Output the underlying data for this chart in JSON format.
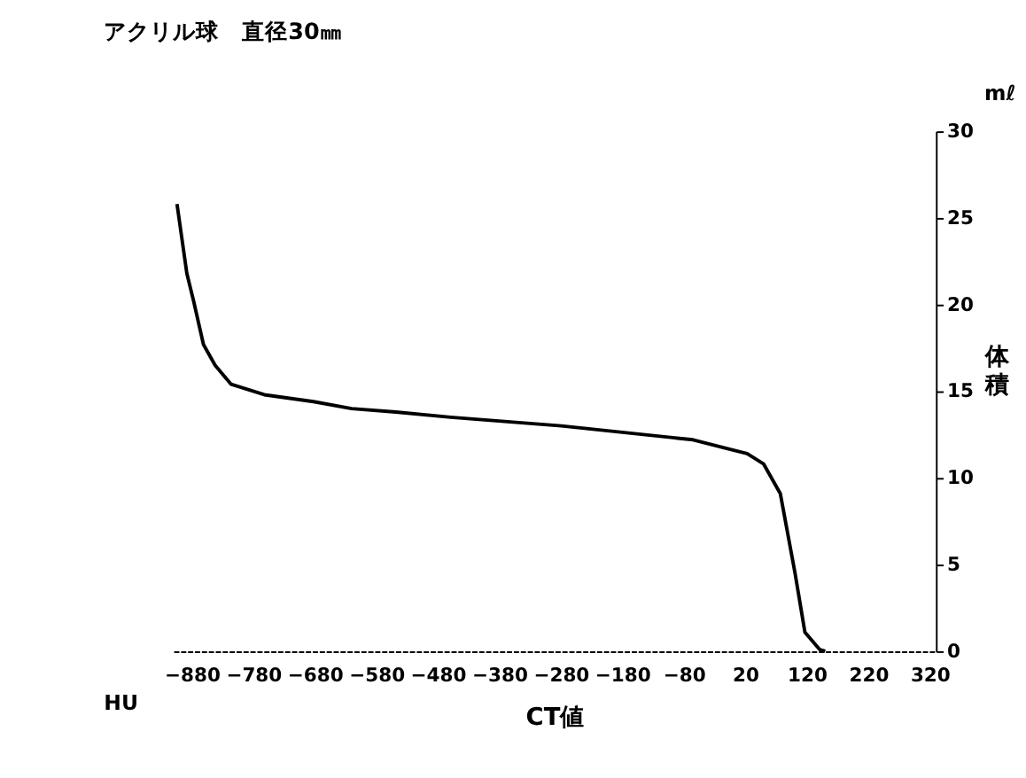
{
  "chart_data": {
    "type": "line",
    "title": "アクリル球　直径30㎜",
    "xlabel": "CT値",
    "ylabel": "体積",
    "annotations": [
      "mℓ",
      "HU"
    ],
    "x": [
      -904,
      -888,
      -877,
      -861,
      -842,
      -816,
      -762,
      -682,
      -620,
      -548,
      -459,
      -279,
      -65,
      23,
      50,
      77,
      101,
      117,
      141,
      150
    ],
    "series": [
      {
        "color": "#000000",
        "values": [
          25.8,
          21.8,
          20.2,
          17.7,
          16.5,
          15.4,
          14.8,
          14.4,
          14.0,
          13.8,
          13.5,
          13.0,
          12.2,
          11.4,
          10.8,
          9.1,
          4.5,
          1.1,
          0.1,
          0
        ]
      }
    ],
    "xlim": [
      -910,
      330
    ],
    "xticks": [
      -880,
      -780,
      -680,
      -580,
      -480,
      -380,
      -280,
      -180,
      -80,
      20,
      120,
      220,
      320
    ],
    "ylim": [
      0,
      30
    ],
    "yticks": [
      0,
      5,
      10,
      15,
      20,
      25,
      30
    ],
    "grid": false,
    "marker": "none",
    "line_style": "solid"
  }
}
